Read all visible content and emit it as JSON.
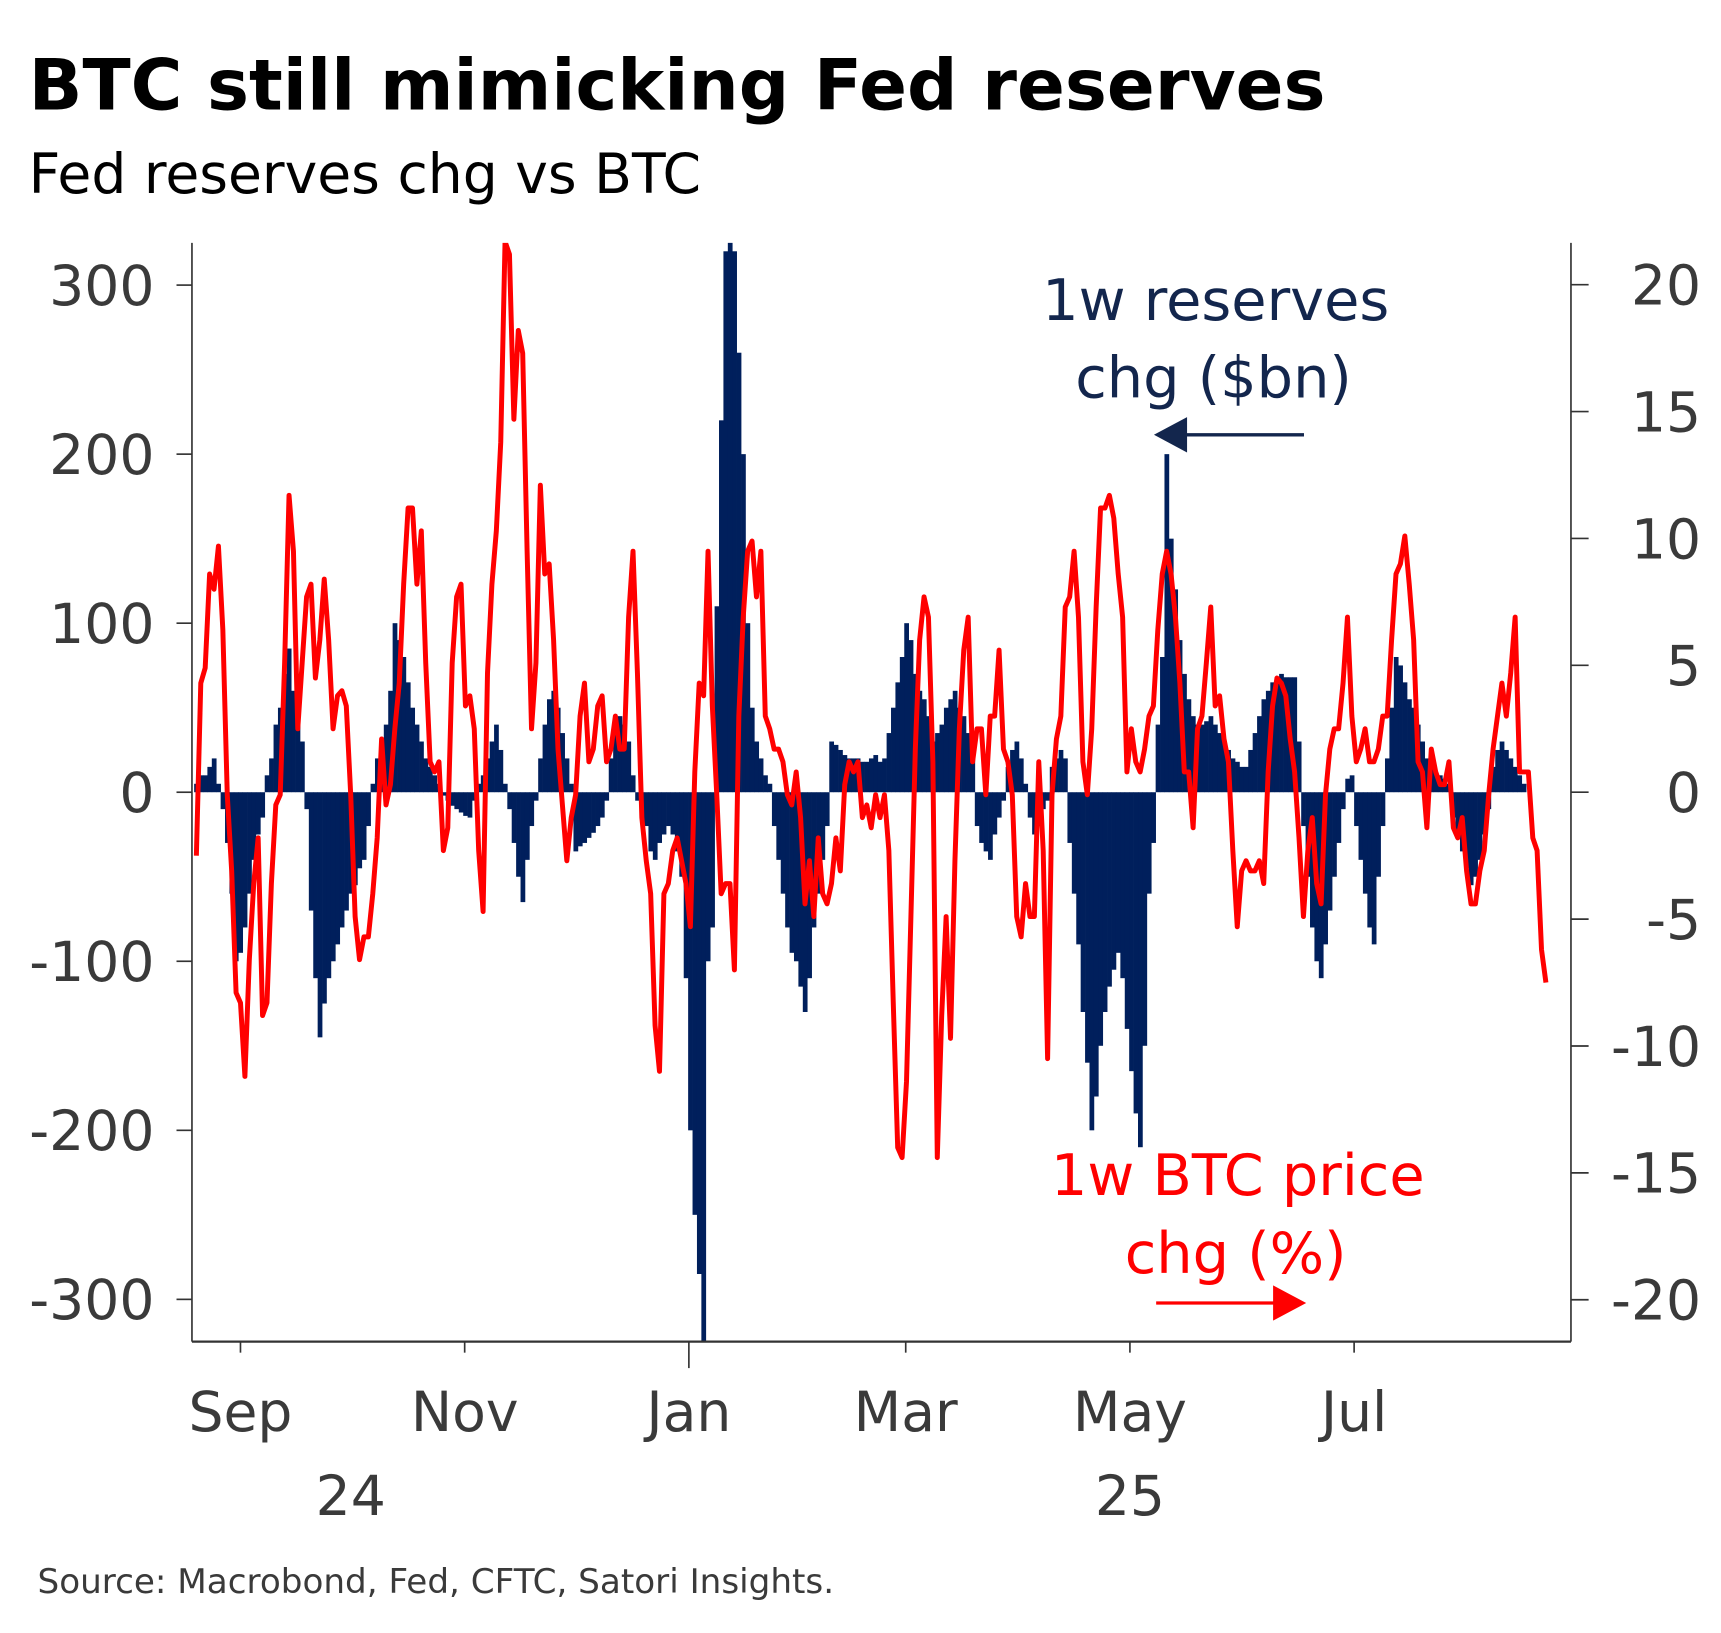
{
  "title": "BTC still mimicking Fed reserves",
  "subtitle": "Fed reserves chg vs BTC",
  "source": "Source: Macrobond, Fed, CFTC, Satori Insights.",
  "colors": {
    "reserves": "#001f5c",
    "btc": "#ff0000",
    "reserves_text": "#13264d"
  },
  "chart_data": {
    "type": "bar+line",
    "title": "BTC still mimicking Fed reserves",
    "subtitle": "Fed reserves chg vs BTC",
    "x_origin_date": "2024-09-01",
    "x_unit": "days since x_origin_date",
    "x_ticks": [
      {
        "day": 0,
        "label": "Sep"
      },
      {
        "day": 61,
        "label": "Nov"
      },
      {
        "day": 122,
        "label": "Jan",
        "major": true
      },
      {
        "day": 181,
        "label": "Mar"
      },
      {
        "day": 242,
        "label": "May"
      },
      {
        "day": 303,
        "label": "Jul"
      }
    ],
    "x_year_labels": [
      {
        "day": 30,
        "label": "24"
      },
      {
        "day": 242,
        "label": "25"
      }
    ],
    "xlim": [
      -13.2,
      362
    ],
    "left_axis": {
      "ylim": [
        -325,
        325
      ],
      "ticks": [
        "300",
        "200",
        "100",
        "0",
        "-100",
        "-200",
        "-300"
      ],
      "tick_values": [
        300,
        200,
        100,
        0,
        -100,
        -200,
        -300
      ]
    },
    "right_axis": {
      "ylim": [
        -21.65,
        21.65
      ],
      "ticks": [
        "20",
        "15",
        "10",
        "5",
        "0",
        "-5",
        "-10",
        "-15",
        "-20"
      ],
      "tick_values": [
        20,
        15,
        10,
        5,
        0,
        -5,
        -10,
        -15,
        -20
      ]
    },
    "annotations": {
      "reserves": [
        "1w reserves",
        "chg ($bn)"
      ],
      "btc": [
        "1w BTC price",
        "chg (%)"
      ]
    },
    "series": [
      {
        "name": "1w reserves chg ($bn)",
        "type": "bar",
        "axis": "left",
        "start_day": -12,
        "step_days": 1.2,
        "values": [
          5,
          10,
          10,
          15,
          20,
          5,
          -10,
          -30,
          -60,
          -100,
          -95,
          -80,
          -60,
          -40,
          -25,
          -15,
          10,
          20,
          40,
          50,
          70,
          85,
          60,
          40,
          30,
          -10,
          -70,
          -110,
          -145,
          -125,
          -110,
          -100,
          -90,
          -80,
          -70,
          -60,
          -55,
          -45,
          -40,
          -20,
          5,
          20,
          30,
          40,
          60,
          100,
          90,
          80,
          65,
          50,
          40,
          30,
          20,
          15,
          10,
          5,
          -2,
          -5,
          -8,
          -10,
          -12,
          -14,
          -15,
          -5,
          5,
          10,
          20,
          30,
          40,
          25,
          5,
          -10,
          -30,
          -50,
          -65,
          -40,
          -20,
          -5,
          20,
          40,
          55,
          60,
          50,
          35,
          20,
          5,
          -35,
          -32,
          -30,
          -27,
          -24,
          -20,
          -15,
          -5,
          20,
          35,
          45,
          40,
          30,
          10,
          -5,
          -15,
          -20,
          -35,
          -40,
          -30,
          -25,
          -20,
          -25,
          -35,
          -50,
          -110,
          -200,
          -250,
          -285,
          -330,
          -100,
          -80,
          110,
          220,
          320,
          330,
          320,
          260,
          200,
          100,
          50,
          30,
          20,
          10,
          5,
          -20,
          -40,
          -60,
          -80,
          -95,
          -100,
          -115,
          -130,
          -110,
          -80,
          -60,
          -40,
          -20,
          30,
          28,
          25,
          22,
          20,
          20,
          20,
          18,
          18,
          20,
          22,
          18,
          20,
          35,
          50,
          65,
          80,
          100,
          90,
          70,
          60,
          55,
          45,
          30,
          35,
          40,
          50,
          55,
          60,
          50,
          45,
          35,
          20,
          -20,
          -30,
          -35,
          -40,
          -25,
          -15,
          -5,
          15,
          25,
          30,
          20,
          5,
          -15,
          -25,
          -20,
          -10,
          -5,
          15,
          20,
          25,
          20,
          -30,
          -60,
          -90,
          -130,
          -160,
          -200,
          -180,
          -150,
          -130,
          -115,
          -105,
          -95,
          -110,
          -140,
          -165,
          -190,
          -210,
          -150,
          -60,
          -30,
          40,
          80,
          200,
          150,
          120,
          90,
          70,
          55,
          45,
          40,
          40,
          42,
          45,
          40,
          35,
          30,
          25,
          20,
          18,
          15,
          15,
          25,
          35,
          45,
          55,
          60,
          65,
          68,
          70,
          68,
          68,
          68,
          30,
          -20,
          -50,
          -80,
          -100,
          -110,
          -90,
          -70,
          -50,
          -30,
          -10,
          8,
          10,
          -20,
          -40,
          -60,
          -80,
          -90,
          -50,
          -20,
          20,
          50,
          80,
          75,
          65,
          55,
          50,
          40,
          30,
          20,
          15,
          12,
          10,
          8,
          5,
          -15,
          -25,
          -35,
          -45,
          -55,
          -50,
          -40,
          -25,
          -10,
          15,
          25,
          30,
          25,
          20,
          15,
          10,
          5
        ]
      },
      {
        "name": "1w BTC price chg (%)",
        "type": "line",
        "axis": "right",
        "start_day": -12,
        "step_days": 1.2,
        "values": [
          -2.5,
          4.3,
          4.9,
          8.6,
          8.0,
          9.7,
          6.4,
          -0.1,
          -3.1,
          -7.9,
          -8.3,
          -11.2,
          -6.6,
          -3.6,
          -1.8,
          -8.8,
          -8.3,
          -3.6,
          -0.5,
          -0.1,
          5.1,
          11.7,
          9.5,
          2.5,
          5.1,
          7.7,
          8.2,
          4.5,
          6.0,
          8.4,
          6.0,
          2.5,
          3.8,
          4.0,
          3.4,
          -0.1,
          -4.9,
          -6.6,
          -5.7,
          -5.7,
          -4.0,
          -1.8,
          2.1,
          -0.5,
          0.3,
          2.5,
          4.3,
          8.2,
          11.2,
          11.2,
          8.2,
          10.3,
          5.1,
          1.2,
          0.8,
          1.2,
          -2.3,
          -1.4,
          5.1,
          7.7,
          8.2,
          3.4,
          3.8,
          2.5,
          -2.3,
          -4.7,
          4.7,
          8.2,
          10.3,
          13.8,
          21.7,
          21.2,
          14.7,
          18.2,
          17.3,
          9.5,
          2.5,
          5.1,
          12.1,
          8.6,
          9.0,
          6.0,
          1.7,
          -0.5,
          -2.7,
          -1.0,
          -0.1,
          3.0,
          4.3,
          1.2,
          1.7,
          3.4,
          3.8,
          1.2,
          1.7,
          3.0,
          1.7,
          1.7,
          6.9,
          9.5,
          4.7,
          -1.0,
          -2.7,
          -4.0,
          -9.2,
          -11.0,
          -4.0,
          -3.6,
          -2.3,
          -1.8,
          -2.7,
          -3.6,
          -5.3,
          0.8,
          4.3,
          3.8,
          9.5,
          3.4,
          -0.1,
          -4.0,
          -3.6,
          -3.6,
          -7.0,
          3.0,
          6.9,
          9.5,
          9.9,
          7.7,
          9.5,
          3.0,
          2.5,
          1.7,
          1.7,
          1.2,
          -0.1,
          -0.5,
          0.8,
          -1.0,
          -4.4,
          -2.7,
          -4.9,
          -1.8,
          -4.0,
          -4.4,
          -3.6,
          -1.8,
          -3.1,
          0.3,
          1.2,
          0.8,
          1.2,
          -1.0,
          -0.5,
          -1.4,
          -0.1,
          -1.0,
          -0.1,
          -2.3,
          -8.3,
          -14.0,
          -14.4,
          -11.4,
          -4.9,
          1.7,
          6.0,
          7.7,
          6.9,
          1.2,
          -14.4,
          -8.8,
          -4.9,
          -9.7,
          -2.7,
          2.5,
          5.6,
          6.9,
          1.2,
          2.5,
          2.5,
          -0.1,
          3.0,
          3.0,
          5.6,
          1.7,
          1.2,
          -0.1,
          -4.9,
          -5.7,
          -3.6,
          -4.9,
          -4.9,
          1.2,
          -2.3,
          -10.5,
          -0.1,
          2.1,
          3.0,
          7.3,
          7.7,
          9.5,
          6.9,
          1.2,
          -0.1,
          2.5,
          7.3,
          11.2,
          11.2,
          11.7,
          10.8,
          8.6,
          6.9,
          0.8,
          2.5,
          1.2,
          0.8,
          1.7,
          3.0,
          3.4,
          6.4,
          8.6,
          9.5,
          8.6,
          6.9,
          4.3,
          0.8,
          0.8,
          -1.4,
          2.5,
          3.0,
          5.1,
          7.3,
          3.4,
          3.8,
          2.1,
          1.2,
          -2.3,
          -5.3,
          -3.1,
          -2.7,
          -3.1,
          -3.1,
          -2.7,
          -3.6,
          0.8,
          3.4,
          4.5,
          4.3,
          3.8,
          2.1,
          0.8,
          -1.8,
          -4.9,
          -2.3,
          -1.0,
          -3.6,
          -4.4,
          -0.1,
          1.7,
          2.5,
          2.5,
          4.3,
          6.9,
          3.0,
          1.2,
          1.7,
          2.5,
          1.2,
          1.2,
          1.7,
          3.0,
          3.0,
          6.0,
          8.6,
          9.0,
          10.1,
          8.2,
          6.0,
          1.2,
          0.8,
          -1.4,
          1.7,
          0.8,
          0.3,
          0.3,
          1.2,
          -1.4,
          -1.8,
          -1.0,
          -3.1,
          -4.4,
          -4.4,
          -3.1,
          -2.3,
          -0.1,
          1.7,
          3.0,
          4.3,
          3.0,
          4.7,
          6.9,
          0.8,
          0.8,
          0.8,
          -1.8,
          -2.3,
          -6.2,
          -7.5
        ]
      }
    ]
  }
}
